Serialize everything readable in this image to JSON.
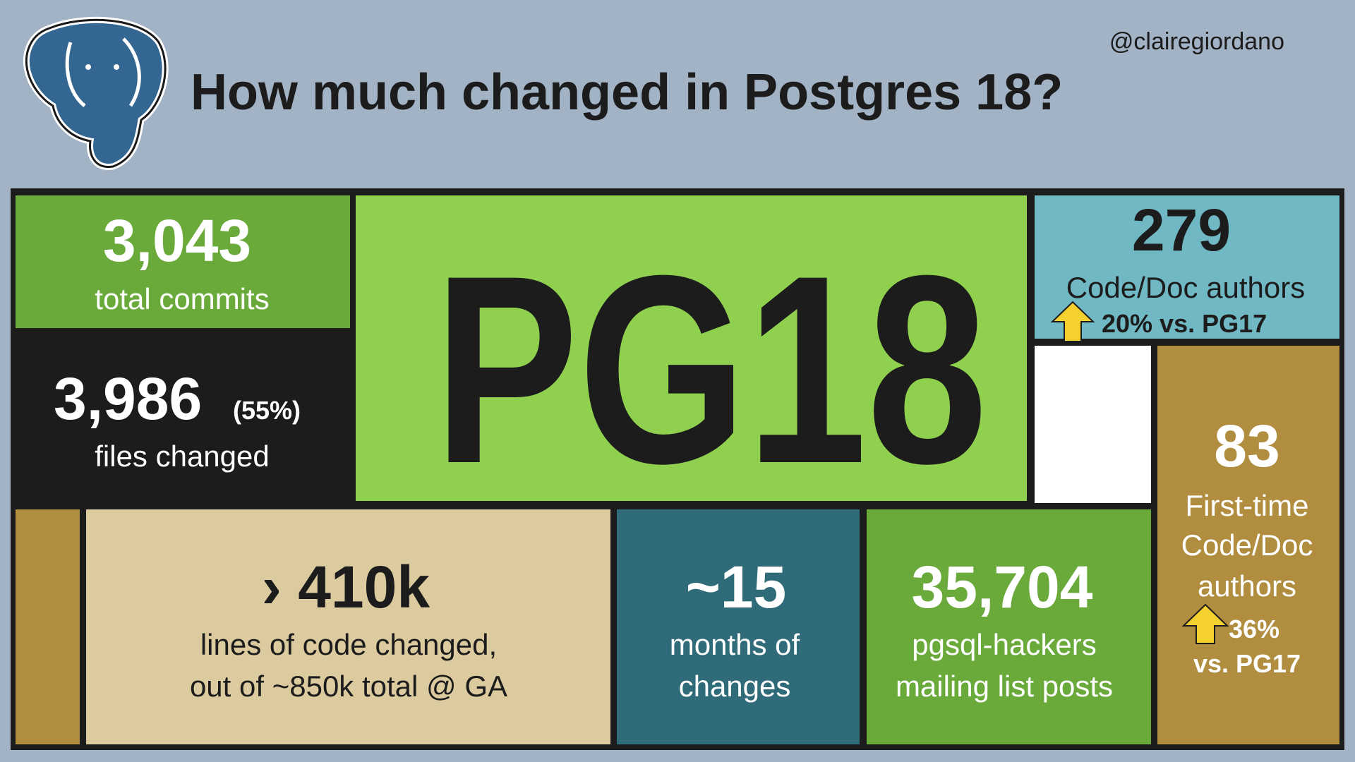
{
  "header": {
    "title": "How much changed in Postgres 18?",
    "handle": "@clairegiordano"
  },
  "tiles": {
    "commits": {
      "value": "3,043",
      "label": "total commits"
    },
    "files": {
      "value": "3,986",
      "note": "(55%)",
      "label": "files changed"
    },
    "center": {
      "label": "PG18"
    },
    "authors": {
      "value": "279",
      "label": "Code/Doc authors",
      "change": "20% vs. PG17"
    },
    "first_time": {
      "value": "83",
      "label": [
        "First-time",
        "Code/Doc",
        "authors"
      ],
      "change": [
        "36%",
        "vs. PG17"
      ]
    },
    "lines": {
      "value": "› 410k",
      "label": [
        "lines of code changed,",
        "out of ~850k total @ GA"
      ]
    },
    "months": {
      "value": "~15",
      "label": [
        "months of",
        "changes"
      ]
    },
    "posts": {
      "value": "35,704",
      "label": [
        "pgsql-hackers",
        "mailing list posts"
      ]
    }
  }
}
